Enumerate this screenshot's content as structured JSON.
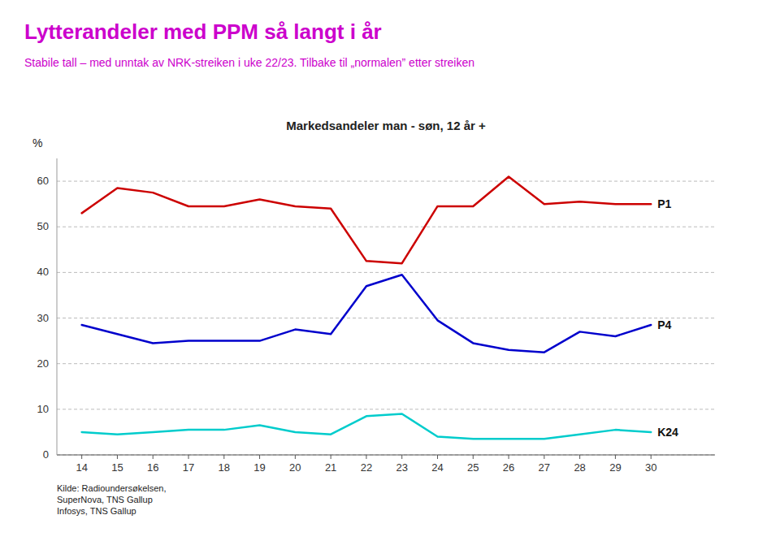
{
  "chart_data": {
    "type": "line",
    "title": "Lytterandeler med PPM så langt i år",
    "subtitle": "Stabile tall – med unntak av NRK-streiken i uke 22/23. Tilbake til „normalen” etter streiken",
    "chart_title": "Markedsandeler man - søn, 12 år +",
    "y_label": "%",
    "source": "Kilde: Radioundersøkelsen,\nSuperNova, TNS Gallup\nInfosys, TNS Gallup",
    "x": [
      14,
      15,
      16,
      17,
      18,
      19,
      20,
      21,
      22,
      23,
      24,
      25,
      26,
      27,
      28,
      29,
      30
    ],
    "series": [
      {
        "name": "P1",
        "color": "#cc0000",
        "values": [
          53,
          58.5,
          57.5,
          54.5,
          54.5,
          56,
          54.5,
          54,
          42.5,
          42,
          54.5,
          54.5,
          61,
          55,
          55.5,
          55,
          55
        ]
      },
      {
        "name": "P4",
        "color": "#0000cc",
        "values": [
          28.5,
          26.5,
          24.5,
          25,
          25,
          25,
          27.5,
          26.5,
          37,
          39.5,
          29.5,
          24.5,
          23,
          22.5,
          27,
          26,
          28.5
        ]
      },
      {
        "name": "K24",
        "color": "#00cccc",
        "values": [
          5,
          4.5,
          5,
          5.5,
          5.5,
          6.5,
          5,
          4.5,
          8.5,
          9,
          4,
          3.5,
          3.5,
          3.5,
          4.5,
          5.5,
          5
        ]
      }
    ],
    "xlim": [
      13.3,
      31.8
    ],
    "xticks": [
      14,
      15,
      16,
      17,
      18,
      19,
      20,
      21,
      22,
      23,
      24,
      25,
      26,
      27,
      28,
      29,
      30
    ],
    "ylim": [
      0,
      65
    ],
    "yticks": [
      0,
      10,
      20,
      30,
      40,
      50,
      60
    ],
    "grid": true
  }
}
